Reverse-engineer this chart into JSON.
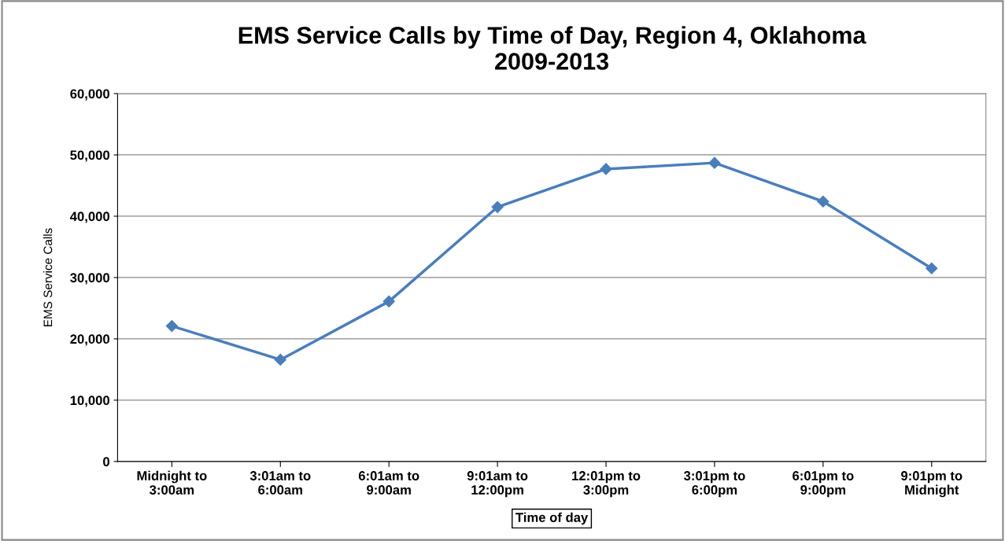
{
  "chart_data": {
    "type": "line",
    "title": "EMS Service Calls by Time of Day, Region 4, Oklahoma\n2009-2013",
    "xlabel": "Time of day",
    "ylabel": "EMS Service Calls",
    "categories": [
      "Midnight to\n3:00am",
      "3:01am to\n6:00am",
      "6:01am to\n9:00am",
      "9:01am to\n12:00pm",
      "12:01pm to\n3:00pm",
      "3:01pm to\n6:00pm",
      "6:01pm to\n9:00pm",
      "9:01pm to\nMidnight"
    ],
    "series": [
      {
        "color": "#4a7ebb",
        "values": [
          22100,
          16600,
          26100,
          41500,
          47700,
          48700,
          42400,
          31500
        ]
      }
    ],
    "ylim": [
      0,
      60000
    ],
    "yticks": [
      {
        "value": 0,
        "label": "0"
      },
      {
        "value": 10000,
        "label": "10,000"
      },
      {
        "value": 20000,
        "label": "20,000"
      },
      {
        "value": 30000,
        "label": "30,000"
      },
      {
        "value": 40000,
        "label": "40,000"
      },
      {
        "value": 50000,
        "label": "50,000"
      },
      {
        "value": 60000,
        "label": "60,000"
      }
    ],
    "grid": "y",
    "marker": "diamond",
    "line_style": "solid",
    "legend": false
  }
}
